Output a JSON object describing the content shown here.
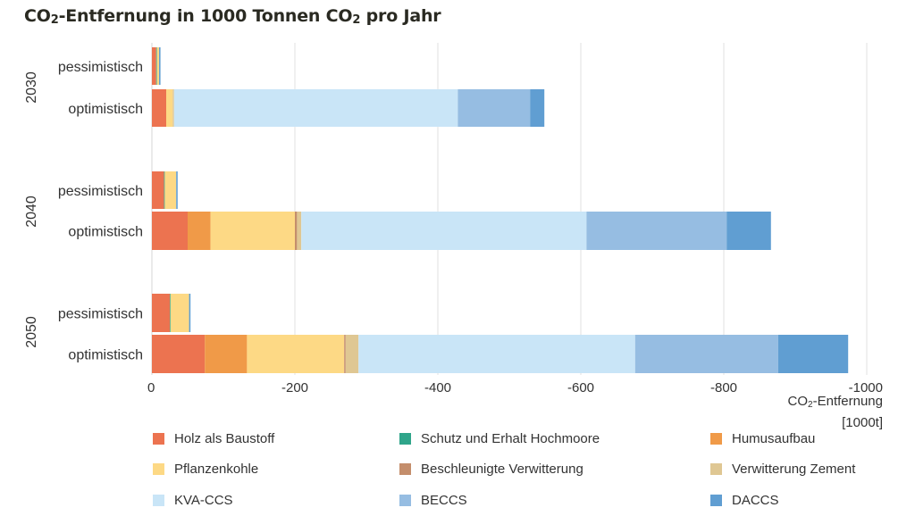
{
  "title": {
    "part1": "CO",
    "sub1": "2",
    "part2": "-Entfernung in 1000 Tonnen CO",
    "sub2": "2",
    "part3": " pro Jahr"
  },
  "chart_data": {
    "type": "bar",
    "orientation": "horizontal",
    "stacked": true,
    "title": "CO₂-Entfernung in 1000 Tonnen CO₂ pro Jahr",
    "xlabel": {
      "line1_a": "CO",
      "line1_sub": "2",
      "line1_b": "-Entfernung",
      "line2": "[1000t]"
    },
    "xlim": [
      0,
      -1000
    ],
    "xticks": [
      0,
      -200,
      -400,
      -600,
      -800,
      -1000
    ],
    "xtick_labels": [
      "0",
      "-200",
      "-400",
      "-600",
      "-800",
      "-1000"
    ],
    "grid": true,
    "legend_position": "bottom",
    "groups": [
      {
        "label": "2030",
        "rows": [
          {
            "label": "pessimistisch",
            "values": [
              -6,
              -1,
              0,
              -3,
              0,
              0,
              0,
              0,
              -2
            ]
          },
          {
            "label": "optimistisch",
            "values": [
              -20,
              0,
              0,
              -9,
              0,
              -2,
              -397,
              -101,
              -20
            ]
          }
        ]
      },
      {
        "label": "2040",
        "rows": [
          {
            "label": "pessimistisch",
            "values": [
              -17,
              -1,
              0,
              -16,
              0,
              0,
              0,
              0,
              -2
            ]
          },
          {
            "label": "optimistisch",
            "values": [
              -50,
              0,
              -32,
              -118,
              -3,
              -6,
              -399,
              -196,
              -62
            ]
          }
        ]
      },
      {
        "label": "2050",
        "rows": [
          {
            "label": "pessimistisch",
            "values": [
              -25,
              -1,
              0,
              -26,
              0,
              0,
              0,
              0,
              -2
            ]
          },
          {
            "label": "optimistisch",
            "values": [
              -74,
              0,
              -59,
              -136,
              -2,
              -18,
              -387,
              -200,
              -98
            ]
          }
        ]
      }
    ],
    "series": [
      {
        "name": "Holz als Baustoff",
        "color": "#ec7350"
      },
      {
        "name": "Schutz und Erhalt Hochmoore",
        "color": "#2fa58a"
      },
      {
        "name": "Humusaufbau",
        "color": "#f09a48"
      },
      {
        "name": "Pflanzenkohle",
        "color": "#fdd985"
      },
      {
        "name": "Beschleunigte Verwitterung",
        "color": "#c48e6c"
      },
      {
        "name": "Verwitterung Zement",
        "color": "#dfc793"
      },
      {
        "name": "KVA-CCS",
        "color": "#c9e5f7"
      },
      {
        "name": "BECCS",
        "color": "#96bde2"
      },
      {
        "name": "DACCS",
        "color": "#609ed2"
      }
    ]
  }
}
